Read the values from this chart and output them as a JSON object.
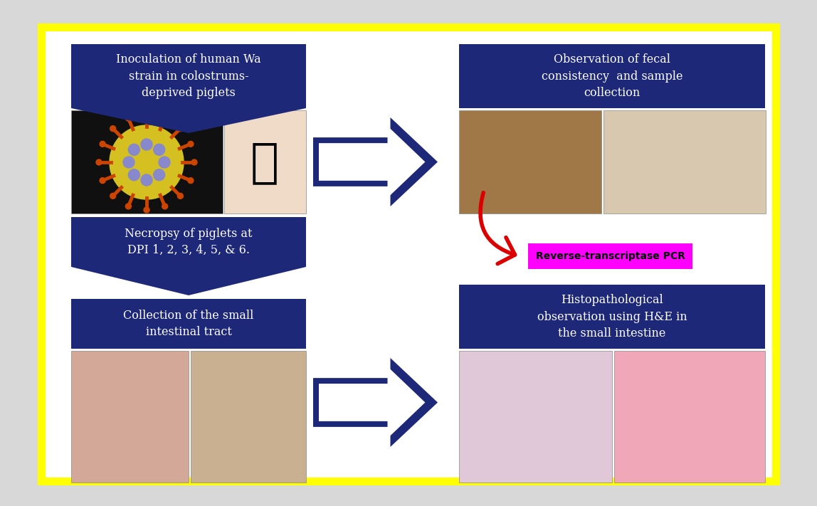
{
  "bg_color": "#d8d8d8",
  "inner_bg": "#ffffff",
  "border_color": "#ffff00",
  "border_linewidth": 8,
  "box_color": "#1e2878",
  "box_text_color": "#ffffff",
  "box1_text": "Inoculation of human Wa\nstrain in colostrums-\ndeprived piglets",
  "box2_text": "Observation of fecal\nconsistency  and sample\ncollection",
  "box3_text": "Necropsy of piglets at\nDPI 1, 2, 3, 4, 5, & 6.",
  "box4_text": "Collection of the small\nintestinal tract",
  "box5_text": "Histopathological\nobservation using H&E in\nthe small intestine",
  "rt_pcr_text": "Reverse-transcriptase PCR",
  "rt_pcr_bg": "#ff00ff",
  "rt_pcr_text_color": "#000000",
  "arrow_color": "#1e2878",
  "arrow_outline": "#ffffff",
  "red_arrow_color": "#dd0000",
  "font_size_box": 11.5,
  "font_size_rt": 10,
  "fig_w": 11.48,
  "fig_h": 7.11
}
